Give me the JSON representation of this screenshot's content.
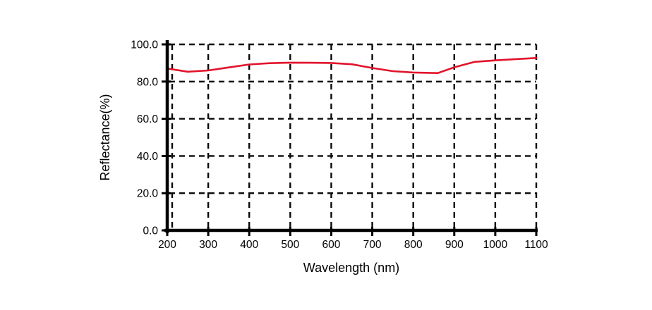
{
  "figure": {
    "background": "#ffffff"
  },
  "chart_data": {
    "type": "line",
    "title": "",
    "xlabel": "Wavelength (nm)",
    "ylabel": "Reflectance(%)",
    "xlim": [
      200,
      1100
    ],
    "ylim": [
      0.0,
      100.0
    ],
    "x_ticks": [
      200,
      300,
      400,
      500,
      600,
      700,
      800,
      900,
      1000,
      1100
    ],
    "x_tick_labels": [
      "200",
      "300",
      "400",
      "500",
      "600",
      "700",
      "800",
      "900",
      "1000",
      "1100"
    ],
    "y_ticks": [
      0,
      20,
      40,
      60,
      80,
      100
    ],
    "y_tick_labels": [
      "0.0",
      "20.0",
      "40.0",
      "60.0",
      "80.0",
      "100.0"
    ],
    "grid": {
      "shown": true,
      "style": "dashed",
      "color": "#000000"
    },
    "legend": {
      "shown": false,
      "position": "none"
    },
    "series": [
      {
        "name": "Reflectance",
        "color": "#e2132b",
        "x": [
          200,
          250,
          300,
          350,
          400,
          450,
          500,
          550,
          600,
          650,
          700,
          750,
          800,
          860,
          900,
          950,
          1000,
          1050,
          1100
        ],
        "y": [
          87.0,
          85.3,
          86.0,
          87.6,
          89.2,
          89.9,
          90.2,
          90.1,
          90.0,
          89.3,
          87.3,
          85.6,
          84.9,
          84.6,
          87.7,
          90.6,
          91.4,
          92.1,
          92.7
        ]
      }
    ]
  },
  "colors": {
    "axis": "#000000",
    "grid": "#0a0a0a",
    "text": "#000000",
    "line": "#e2132b",
    "background": "#ffffff"
  }
}
